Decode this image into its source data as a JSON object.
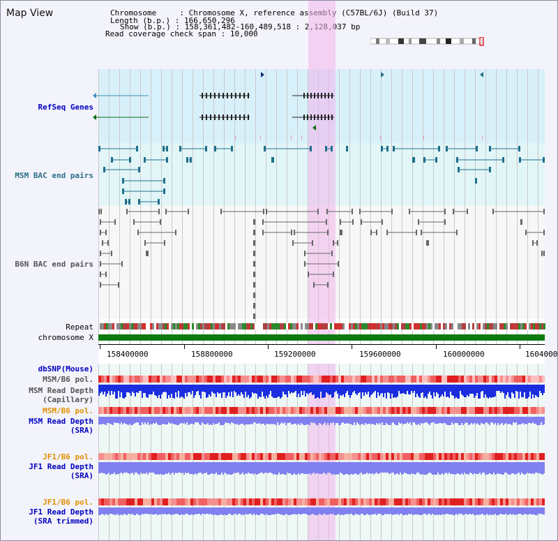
{
  "title": "Map View",
  "info": {
    "chromosome_label": "Chromosome",
    "chromosome_value": "Chromosome X, reference assembly (C57BL/6J) (Build 37)",
    "length_label": "Length (b.p.)",
    "length_value": "166,650,296",
    "show_label": "Show (b.p.)",
    "show_value": "158,361,482-160,489,518 : 2,128,037 bp",
    "coverage_label": "Read coverage check span",
    "coverage_value": "10,000"
  },
  "tracks": {
    "refseq": "RefSeq Genes",
    "msm_bac": "MSM BAC end pairs",
    "b6n_bac": "B6N BAC end pairs",
    "repeat": "Repeat",
    "chromosome": "chromosome X",
    "dbsnp": "dbSNP(Mouse)",
    "msm_b6_pol_1": "MSM/B6 pol.",
    "msm_depth_cap_1": "MSM Read Depth",
    "msm_depth_cap_2": "(Capillary)",
    "msm_b6_pol_2": "MSM/B6 pol.",
    "msm_depth_sra_1": "MSM Read Depth",
    "msm_depth_sra_2": "(SRA)",
    "jf1_b6_pol_1": "JF1/B6 pol.",
    "jf1_depth_1": "JF1 Read Depth",
    "jf1_depth_2": "(SRA)",
    "jf1_b6_pol_2": "JF1/B6 pol.",
    "jf1_trim_1": "JF1 Read Depth",
    "jf1_trim_2": "(SRA trimmed)"
  },
  "scale_ticks": [
    "158400000",
    "158800000",
    "159200000",
    "159600000",
    "160000000",
    "1604000"
  ],
  "colors": {
    "refseq_dark": "#0a2f6b",
    "refseq_mid": "#3a90b8",
    "refseq_green": "#0c6b10",
    "msm_bac": "#1f6f8b",
    "b6n_bac": "#666666",
    "highlight": "#f3b5ec",
    "depth_blue": "#1a2ee0",
    "depth_light": "#8080f0",
    "pol_red": "#e03030"
  }
}
